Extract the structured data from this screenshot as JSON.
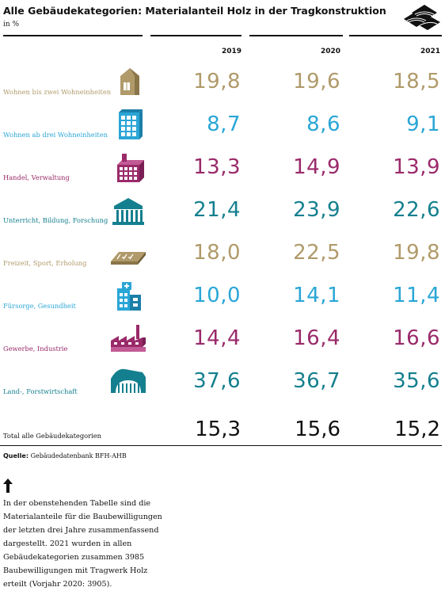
{
  "title": "Alle Gebäudekategorien: Materialanteil Holz in der Tragkonstruktion",
  "subtitle": "in %",
  "chart_data": {
    "type": "table",
    "title": "Alle Gebäudekategorien: Materialanteil Holz in der Tragkonstruktion",
    "unit": "in %",
    "years": [
      "2019",
      "2020",
      "2021"
    ],
    "rows": [
      {
        "label": "Wohnen bis zwei Wohneinheiten",
        "icon": "house-icon",
        "color": "#b09a6a",
        "values": [
          "19,8",
          "19,6",
          "18,5"
        ]
      },
      {
        "label": "Wohnen ab drei Wohneinheiten",
        "icon": "apartment-building-icon",
        "color": "#2aa6d6",
        "values": [
          "8,7",
          "8,6",
          "9,1"
        ]
      },
      {
        "label": "Handel, Verwaltung",
        "icon": "office-building-icon",
        "color": "#9a2a6a",
        "values": [
          "13,3",
          "14,9",
          "13,9"
        ]
      },
      {
        "label": "Unterricht, Bildung, Forschung",
        "icon": "temple-icon",
        "color": "#147f8e",
        "values": [
          "21,4",
          "23,9",
          "22,6"
        ]
      },
      {
        "label": "Freizeit, Sport, Erholung",
        "icon": "sports-hall-icon",
        "color": "#b09a6a",
        "values": [
          "18,0",
          "22,5",
          "19,8"
        ]
      },
      {
        "label": "Fürsorge, Gesundheit",
        "icon": "hospital-icon",
        "color": "#2aa6d6",
        "values": [
          "10,0",
          "14,1",
          "11,4"
        ]
      },
      {
        "label": "Gewerbe, Industrie",
        "icon": "factory-icon",
        "color": "#9a2a6a",
        "values": [
          "14,4",
          "16,4",
          "16,6"
        ]
      },
      {
        "label": "Land-, Forstwirtschaft",
        "icon": "barn-icon",
        "color": "#147f8e",
        "values": [
          "37,6",
          "36,7",
          "35,6"
        ]
      }
    ],
    "total": {
      "label": "Total alle Gebäudekategorien",
      "values": [
        "15,3",
        "15,6",
        "15,2"
      ]
    }
  },
  "source": {
    "label": "Quelle:",
    "text": "Gebäudedatenbank BFH-AHB"
  },
  "note": "In der obenstehenden Tabelle sind die Materialanteile für die Baubewilligungen der letzten drei Jahre zusammenfassend dargestellt. 2021 wurden in allen Gebäudekategorien zusammen 3985 Baubewilligungen mit Tragwerk Holz erteilt (Vorjahr 2020: 3905)."
}
